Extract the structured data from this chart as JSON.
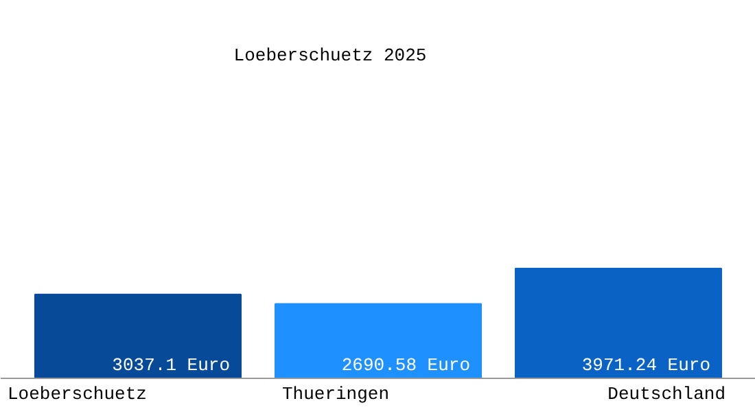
{
  "chart_data": {
    "type": "bar",
    "title": "Loeberschuetz 2025",
    "categories": [
      "Loeberschuetz",
      "Thueringen",
      "Deutschland"
    ],
    "values": [
      3037.1,
      2690.58,
      3971.24
    ],
    "colors": [
      "#064a98",
      "#1e90ff",
      "#0a63c4"
    ],
    "value_labels": [
      "3037.1 Euro",
      "2690.58 Euro",
      "3971.24 Euro"
    ],
    "grid": false
  }
}
